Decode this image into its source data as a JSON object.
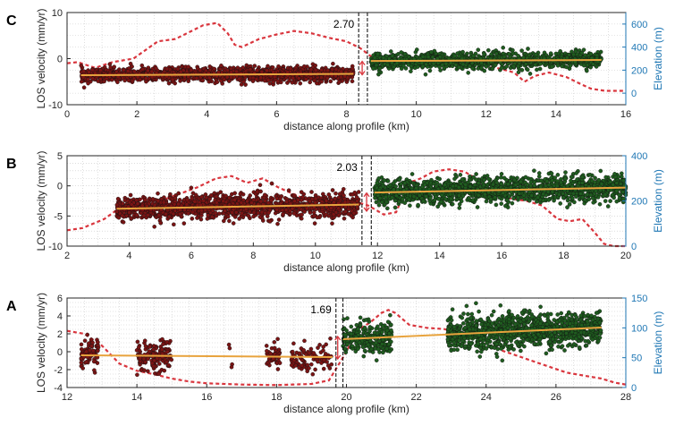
{
  "colors": {
    "left_points": "#7a1414",
    "right_points": "#1f5c1f",
    "fit_line": "#e8a33d",
    "elevation": "#d9363e",
    "right_axis": "#1f77b4",
    "grid": "#c8c8c8"
  },
  "chart_data": [
    {
      "panel": "C",
      "type": "scatter",
      "xlabel": "distance along profile (km)",
      "ylabel": "LOS velocity (mm/yr)",
      "y2label": "Elevation (m)",
      "xlim": [
        0,
        16
      ],
      "ylim": [
        -10,
        10
      ],
      "y2lim": [
        -100,
        700
      ],
      "xticks": [
        0,
        2,
        4,
        6,
        8,
        10,
        12,
        14,
        16
      ],
      "yticks": [
        -10,
        0,
        10
      ],
      "y2ticks": [
        0,
        200,
        400,
        600
      ],
      "grid": true,
      "offset_label": "2.70",
      "fault_lines": [
        8.35,
        8.6
      ],
      "offset_arrow": {
        "x": 8.45,
        "y_from": -3.5,
        "y_to": -0.6
      },
      "series": [
        {
          "side": "left",
          "x_range": [
            0.4,
            8.2
          ],
          "y_center": -3.4,
          "spread": 1.4,
          "density": "continuous",
          "fit": [
            [
              0.4,
              -3.6
            ],
            [
              8.2,
              -3.3
            ]
          ]
        },
        {
          "side": "right",
          "x_range": [
            8.7,
            15.3
          ],
          "y_center": -0.6,
          "spread": 1.6,
          "density": "continuous",
          "fit": [
            [
              8.7,
              -0.5
            ],
            [
              15.3,
              -0.3
            ]
          ]
        }
      ],
      "elevation": [
        [
          0,
          260
        ],
        [
          0.3,
          270
        ],
        [
          0.8,
          220
        ],
        [
          1.3,
          270
        ],
        [
          1.9,
          300
        ],
        [
          2.6,
          450
        ],
        [
          3.1,
          470
        ],
        [
          3.5,
          530
        ],
        [
          3.9,
          590
        ],
        [
          4.3,
          610
        ],
        [
          4.6,
          520
        ],
        [
          4.8,
          420
        ],
        [
          5.0,
          400
        ],
        [
          5.5,
          470
        ],
        [
          6.0,
          510
        ],
        [
          6.5,
          540
        ],
        [
          7.0,
          520
        ],
        [
          7.5,
          480
        ],
        [
          8.0,
          450
        ],
        [
          8.4,
          390
        ],
        [
          8.7,
          320
        ],
        [
          9.2,
          280
        ],
        [
          9.8,
          300
        ],
        [
          10.5,
          310
        ],
        [
          11.2,
          310
        ],
        [
          11.8,
          240
        ],
        [
          12.3,
          220
        ],
        [
          12.8,
          180
        ],
        [
          13.1,
          100
        ],
        [
          13.4,
          150
        ],
        [
          13.8,
          180
        ],
        [
          14.3,
          140
        ],
        [
          14.7,
          80
        ],
        [
          15.0,
          40
        ],
        [
          15.4,
          20
        ],
        [
          16.0,
          20
        ]
      ]
    },
    {
      "panel": "B",
      "type": "scatter",
      "xlabel": "distance along profile (km)",
      "ylabel": "LOS velocity (mm/yr)",
      "y2label": "Elevation (m)",
      "xlim": [
        2,
        20
      ],
      "ylim": [
        -10,
        5
      ],
      "y2lim": [
        0,
        400
      ],
      "xticks": [
        2,
        4,
        6,
        8,
        10,
        12,
        14,
        16,
        18,
        20
      ],
      "yticks": [
        -10,
        -5,
        0,
        5
      ],
      "y2ticks": [
        0,
        200,
        400
      ],
      "grid": true,
      "offset_label": "2.03",
      "fault_lines": [
        11.5,
        11.8
      ],
      "offset_arrow": {
        "x": 11.65,
        "y_from": -4.2,
        "y_to": -1.2
      },
      "series": [
        {
          "side": "left",
          "x_range": [
            3.6,
            11.4
          ],
          "y_center": -3.4,
          "spread": 1.8,
          "density": "continuous",
          "fit": [
            [
              3.6,
              -3.8
            ],
            [
              11.4,
              -3.1
            ]
          ]
        },
        {
          "side": "right",
          "x_range": [
            11.9,
            20
          ],
          "y_center": -0.6,
          "spread": 1.9,
          "density": "continuous",
          "fit": [
            [
              11.9,
              -1.1
            ],
            [
              20,
              -0.3
            ]
          ]
        }
      ],
      "elevation": [
        [
          2,
          70
        ],
        [
          2.5,
          80
        ],
        [
          3.2,
          120
        ],
        [
          3.8,
          180
        ],
        [
          4.4,
          210
        ],
        [
          5.0,
          200
        ],
        [
          5.6,
          230
        ],
        [
          6.2,
          260
        ],
        [
          6.8,
          300
        ],
        [
          7.3,
          310
        ],
        [
          7.8,
          280
        ],
        [
          8.3,
          300
        ],
        [
          8.8,
          260
        ],
        [
          9.3,
          230
        ],
        [
          9.8,
          200
        ],
        [
          10.3,
          200
        ],
        [
          10.8,
          210
        ],
        [
          11.2,
          200
        ],
        [
          11.7,
          180
        ],
        [
          12.2,
          140
        ],
        [
          12.6,
          150
        ],
        [
          13.0,
          280
        ],
        [
          13.4,
          300
        ],
        [
          13.8,
          330
        ],
        [
          14.3,
          340
        ],
        [
          14.8,
          330
        ],
        [
          15.3,
          290
        ],
        [
          15.8,
          230
        ],
        [
          16.3,
          210
        ],
        [
          16.8,
          200
        ],
        [
          17.3,
          180
        ],
        [
          17.8,
          120
        ],
        [
          18.2,
          110
        ],
        [
          18.6,
          120
        ],
        [
          19.0,
          60
        ],
        [
          19.3,
          10
        ],
        [
          19.6,
          0
        ],
        [
          20.0,
          0
        ]
      ]
    },
    {
      "panel": "A",
      "type": "scatter",
      "xlabel": "distance along profile (km)",
      "ylabel": "LOS velocity (mm/yr)",
      "y2label": "Elevation (m)",
      "xlim": [
        12,
        28
      ],
      "ylim": [
        -4,
        6
      ],
      "y2lim": [
        0,
        150
      ],
      "xticks": [
        12,
        14,
        16,
        18,
        20,
        22,
        24,
        26,
        28
      ],
      "yticks": [
        -4,
        -2,
        0,
        2,
        4,
        6
      ],
      "y2ticks": [
        0,
        50,
        100,
        150
      ],
      "grid": true,
      "offset_label": "1.69",
      "fault_lines": [
        19.7,
        19.9
      ],
      "offset_arrow": {
        "x": 19.75,
        "y_from": -0.8,
        "y_to": 1.7
      },
      "series": [
        {
          "side": "left",
          "x_range": [
            12.4,
            19.6
          ],
          "y_center": -0.4,
          "spread": 1.5,
          "density": "clusters",
          "clusters": [
            [
              12.4,
              12.9,
              80
            ],
            [
              14.0,
              15.0,
              160
            ],
            [
              16.6,
              16.8,
              4
            ],
            [
              17.7,
              18.1,
              40
            ],
            [
              18.4,
              19.6,
              90
            ]
          ],
          "fit": [
            [
              12.4,
              -0.4
            ],
            [
              19.6,
              -0.6
            ]
          ]
        },
        {
          "side": "right",
          "x_range": [
            19.9,
            27.3
          ],
          "y_center": 1.6,
          "spread": 1.7,
          "density": "clusters",
          "clusters": [
            [
              19.9,
              21.3,
              260
            ],
            [
              22.9,
              27.3,
              1100
            ]
          ],
          "fit": [
            [
              19.9,
              1.4
            ],
            [
              27.3,
              2.7
            ]
          ]
        }
      ],
      "elevation": [
        [
          12,
          95
        ],
        [
          12.5,
          90
        ],
        [
          13.0,
          70
        ],
        [
          13.5,
          40
        ],
        [
          14.0,
          28
        ],
        [
          14.5,
          22
        ],
        [
          15.0,
          15
        ],
        [
          15.5,
          10
        ],
        [
          16.0,
          7
        ],
        [
          17.0,
          5
        ],
        [
          18.0,
          4
        ],
        [
          19.0,
          6
        ],
        [
          19.5,
          12
        ],
        [
          20.0,
          60
        ],
        [
          20.3,
          95
        ],
        [
          20.7,
          110
        ],
        [
          21.0,
          125
        ],
        [
          21.2,
          130
        ],
        [
          21.4,
          125
        ],
        [
          21.8,
          105
        ],
        [
          22.3,
          100
        ],
        [
          22.8,
          98
        ],
        [
          23.3,
          90
        ],
        [
          23.8,
          82
        ],
        [
          24.3,
          65
        ],
        [
          24.8,
          55
        ],
        [
          25.3,
          45
        ],
        [
          25.8,
          35
        ],
        [
          26.3,
          25
        ],
        [
          26.8,
          20
        ],
        [
          27.3,
          15
        ],
        [
          27.7,
          8
        ],
        [
          28.0,
          5
        ]
      ]
    }
  ]
}
